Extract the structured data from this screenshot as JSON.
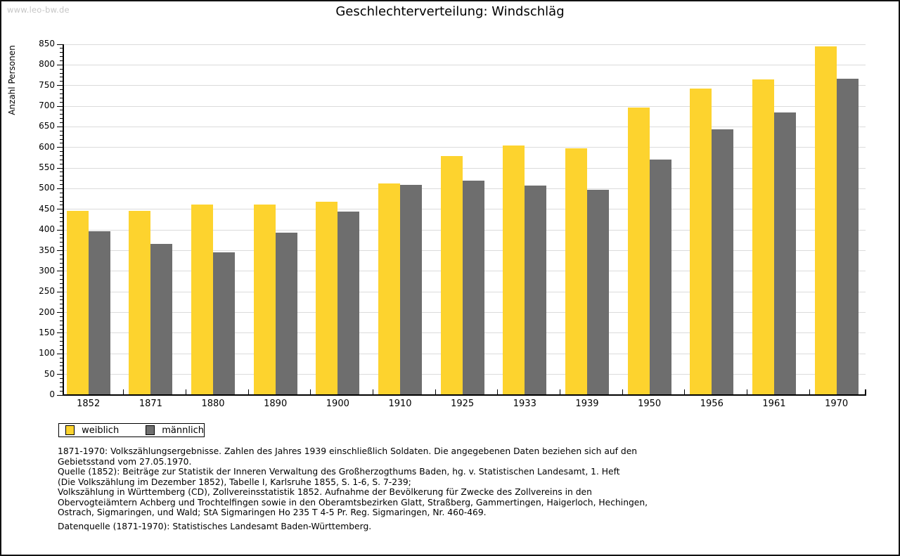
{
  "watermark": "www.leo-bw.de",
  "title": "Geschlechterverteilung: Windschläg",
  "legend": {
    "items": [
      {
        "label": "weiblich",
        "color": "#FDD32E"
      },
      {
        "label": "männlich",
        "color": "#6E6E6E"
      }
    ]
  },
  "footer": {
    "lines": [
      "1871-1970: Volkszählungsergebnisse. Zahlen des Jahres 1939 einschließlich Soldaten. Die angegebenen Daten beziehen sich auf den",
      "Gebietsstand vom 27.05.1970.",
      "Quelle (1852): Beiträge zur Statistik der Inneren Verwaltung des Großherzogthums Baden, hg. v. Statistischen Landesamt, 1. Heft",
      "(Die Volkszählung im Dezember 1852), Tabelle I, Karlsruhe 1855, S. 1-6, S. 7-239;",
      "Volkszählung in Württemberg (CD), Zollvereinsstatistik 1852. Aufnahme der Bevölkerung für Zwecke des Zollvereins in den",
      "Obervogteiämtern Achberg und Trochtelfingen sowie in den Oberamtsbezirken Glatt, Straßberg, Gammertingen, Haigerloch, Hechingen,",
      "Ostrach, Sigmaringen, und Wald; StA Sigmaringen Ho 235 T 4-5 Pr. Reg. Sigmaringen, Nr. 460-469."
    ],
    "datenquelle": "Datenquelle (1871-1970): Statistisches Landesamt Baden-Württemberg."
  },
  "chart_data": {
    "type": "bar",
    "title": "Geschlechterverteilung: Windschläg",
    "xlabel": "",
    "ylabel": "Anzahl Personen",
    "categories": [
      "1852",
      "1871",
      "1880",
      "1890",
      "1900",
      "1910",
      "1925",
      "1933",
      "1939",
      "1950",
      "1956",
      "1961",
      "1970"
    ],
    "series": [
      {
        "name": "weiblich",
        "color": "#FDD32E",
        "values": [
          446,
          446,
          461,
          462,
          468,
          512,
          580,
          605,
          598,
          697,
          743,
          764,
          845
        ]
      },
      {
        "name": "männlich",
        "color": "#6E6E6E",
        "values": [
          397,
          367,
          346,
          394,
          444,
          510,
          520,
          507,
          497,
          570,
          644,
          684,
          766
        ]
      }
    ],
    "ylim": [
      0,
      850
    ],
    "ytick_step": 50,
    "y_minor_tick_step": 10,
    "grid": true,
    "gridline_color": "#dbdbdb",
    "legend_position": "bottom-left"
  }
}
